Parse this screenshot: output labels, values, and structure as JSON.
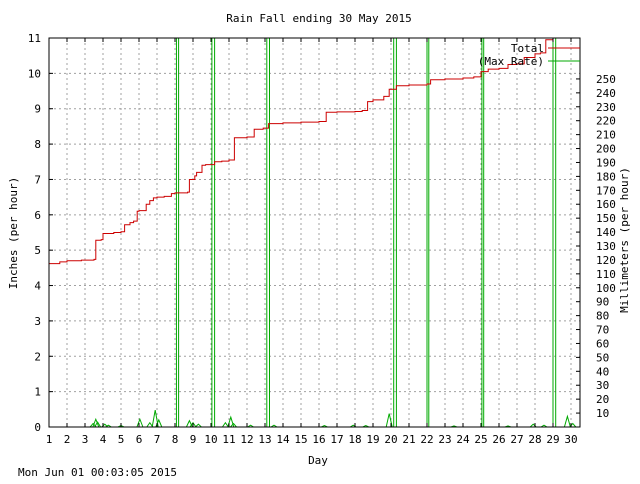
{
  "chart_data": {
    "type": "line",
    "title": "Rain Fall ending 30 May 2015",
    "xlabel": "Day",
    "ylabel": "Inches (per hour)",
    "y2label": "Millimeters (per hour)",
    "xlim": [
      1,
      30.5
    ],
    "ylim": [
      0,
      11
    ],
    "y2lim": [
      0,
      279.4
    ],
    "x_ticks": [
      "1",
      "2",
      "3",
      "4",
      "5",
      "6",
      "7",
      "8",
      "9",
      "10",
      "11",
      "12",
      "13",
      "14",
      "15",
      "16",
      "17",
      "18",
      "19",
      "20",
      "21",
      "22",
      "23",
      "24",
      "25",
      "26",
      "27",
      "28",
      "29",
      "30"
    ],
    "y_ticks": [
      "0",
      "1",
      "2",
      "3",
      "4",
      "5",
      "6",
      "7",
      "8",
      "9",
      "10",
      "11"
    ],
    "y2_ticks": [
      "10",
      "20",
      "30",
      "40",
      "50",
      "60",
      "70",
      "80",
      "90",
      "100",
      "110",
      "120",
      "130",
      "140",
      "150",
      "160",
      "170",
      "180",
      "190",
      "200",
      "210",
      "220",
      "230",
      "240",
      "250"
    ],
    "grid": true,
    "legend_position": "top-right",
    "series": [
      {
        "name": "Total",
        "color": "#cc0000",
        "x": [
          1.0,
          1.6,
          2.0,
          2.8,
          3.5,
          3.6,
          3.9,
          4.0,
          4.6,
          5.0,
          5.2,
          5.5,
          5.7,
          5.9,
          6.0,
          6.4,
          6.6,
          6.8,
          7.0,
          7.4,
          7.8,
          8.0,
          8.7,
          8.8,
          9.1,
          9.2,
          9.5,
          9.7,
          10.2,
          10.6,
          11.0,
          11.3,
          12.0,
          12.4,
          12.9,
          13.2,
          14.0,
          15.0,
          16.0,
          16.4,
          17.0,
          18.0,
          18.4,
          18.7,
          19.0,
          19.6,
          19.9,
          20.3,
          21.0,
          22.0,
          22.2,
          23.0,
          24.0,
          24.6,
          25.0,
          25.4,
          26.0,
          26.5,
          27.0,
          27.4,
          28.0,
          28.3,
          28.6,
          29.0,
          29.7,
          30.0,
          30.5
        ],
        "values": [
          4.62,
          4.67,
          4.7,
          4.72,
          4.74,
          5.28,
          5.3,
          5.47,
          5.5,
          5.52,
          5.72,
          5.78,
          5.82,
          6.1,
          6.12,
          6.3,
          6.4,
          6.48,
          6.5,
          6.52,
          6.6,
          6.62,
          6.64,
          7.0,
          7.1,
          7.2,
          7.4,
          7.42,
          7.5,
          7.52,
          7.55,
          8.18,
          8.2,
          8.42,
          8.45,
          8.58,
          8.6,
          8.62,
          8.64,
          8.9,
          8.91,
          8.92,
          8.95,
          9.2,
          9.25,
          9.35,
          9.55,
          9.65,
          9.67,
          9.7,
          9.82,
          9.84,
          9.87,
          9.9,
          10.05,
          10.12,
          10.14,
          10.25,
          10.27,
          10.45,
          10.55,
          10.58,
          10.95,
          11.0,
          11.05,
          11.1,
          11.12
        ]
      },
      {
        "name": "(Max Rate)",
        "color": "#00aa00",
        "spikes": [
          {
            "x": 8.08,
            "y": 11.5
          },
          {
            "x": 8.2,
            "y": 11.5
          },
          {
            "x": 10.05,
            "y": 11.5
          },
          {
            "x": 10.2,
            "y": 11.5
          },
          {
            "x": 13.1,
            "y": 11.5
          },
          {
            "x": 13.25,
            "y": 11.5
          },
          {
            "x": 20.15,
            "y": 11.5
          },
          {
            "x": 20.3,
            "y": 11.5
          },
          {
            "x": 22.0,
            "y": 11.5
          },
          {
            "x": 22.1,
            "y": 11.5
          },
          {
            "x": 25.05,
            "y": 11.5
          },
          {
            "x": 25.15,
            "y": 11.5
          },
          {
            "x": 29.0,
            "y": 11.5
          },
          {
            "x": 29.15,
            "y": 11.5
          }
        ],
        "small": [
          {
            "x": 3.45,
            "y": 0.1
          },
          {
            "x": 3.6,
            "y": 0.22
          },
          {
            "x": 3.7,
            "y": 0.14
          },
          {
            "x": 4.1,
            "y": 0.08
          },
          {
            "x": 4.3,
            "y": 0.05
          },
          {
            "x": 5.0,
            "y": 0.04
          },
          {
            "x": 6.05,
            "y": 0.22
          },
          {
            "x": 6.6,
            "y": 0.12
          },
          {
            "x": 6.9,
            "y": 0.48
          },
          {
            "x": 7.1,
            "y": 0.2
          },
          {
            "x": 8.8,
            "y": 0.18
          },
          {
            "x": 9.0,
            "y": 0.12
          },
          {
            "x": 9.3,
            "y": 0.08
          },
          {
            "x": 10.8,
            "y": 0.12
          },
          {
            "x": 11.1,
            "y": 0.28
          },
          {
            "x": 11.25,
            "y": 0.1
          },
          {
            "x": 12.2,
            "y": 0.05
          },
          {
            "x": 13.5,
            "y": 0.05
          },
          {
            "x": 16.3,
            "y": 0.04
          },
          {
            "x": 17.9,
            "y": 0.05
          },
          {
            "x": 18.6,
            "y": 0.04
          },
          {
            "x": 19.9,
            "y": 0.38
          },
          {
            "x": 23.5,
            "y": 0.03
          },
          {
            "x": 26.5,
            "y": 0.03
          },
          {
            "x": 27.9,
            "y": 0.08
          },
          {
            "x": 28.5,
            "y": 0.05
          },
          {
            "x": 29.8,
            "y": 0.3
          },
          {
            "x": 30.1,
            "y": 0.1
          }
        ]
      }
    ]
  },
  "footer": {
    "timestamp": "Mon Jun 01 00:03:05 2015"
  }
}
